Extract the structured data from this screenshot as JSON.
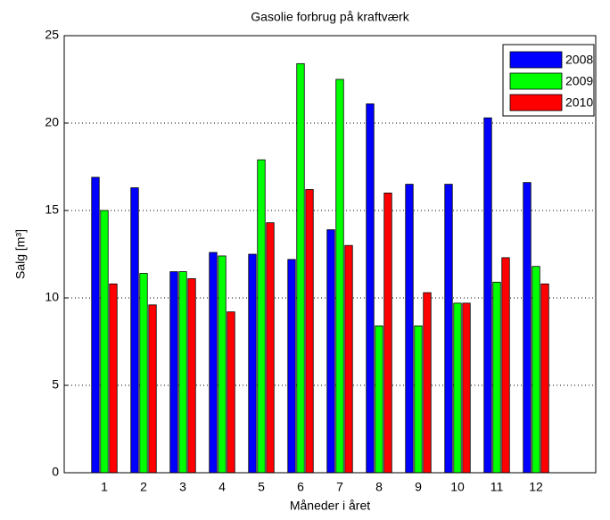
{
  "chart_data": {
    "type": "bar",
    "title": "Gasolie forbrug på kraftværk",
    "x_label": "Måneder i året",
    "y_label": "Salg [m³]",
    "categories": [
      "1",
      "2",
      "3",
      "4",
      "5",
      "6",
      "7",
      "8",
      "9",
      "10",
      "11",
      "12"
    ],
    "series": [
      {
        "name": "2008",
        "color": "#0000ff",
        "values": [
          16.9,
          16.3,
          11.5,
          12.6,
          12.5,
          12.2,
          13.9,
          21.1,
          16.5,
          16.5,
          20.3,
          16.6
        ]
      },
      {
        "name": "2009",
        "color": "#00ff00",
        "values": [
          15.0,
          11.4,
          11.5,
          12.4,
          17.9,
          23.4,
          22.5,
          8.4,
          8.4,
          9.7,
          10.9,
          11.8
        ]
      },
      {
        "name": "2010",
        "color": "#ff0000",
        "values": [
          10.8,
          9.6,
          11.1,
          9.2,
          14.3,
          16.2,
          13.0,
          16.0,
          10.3,
          9.7,
          12.3,
          10.8
        ]
      }
    ],
    "ylim": [
      0,
      25
    ],
    "yticks": [
      0,
      5,
      10,
      15,
      20,
      25
    ],
    "grid": true,
    "legend": "top-right"
  }
}
